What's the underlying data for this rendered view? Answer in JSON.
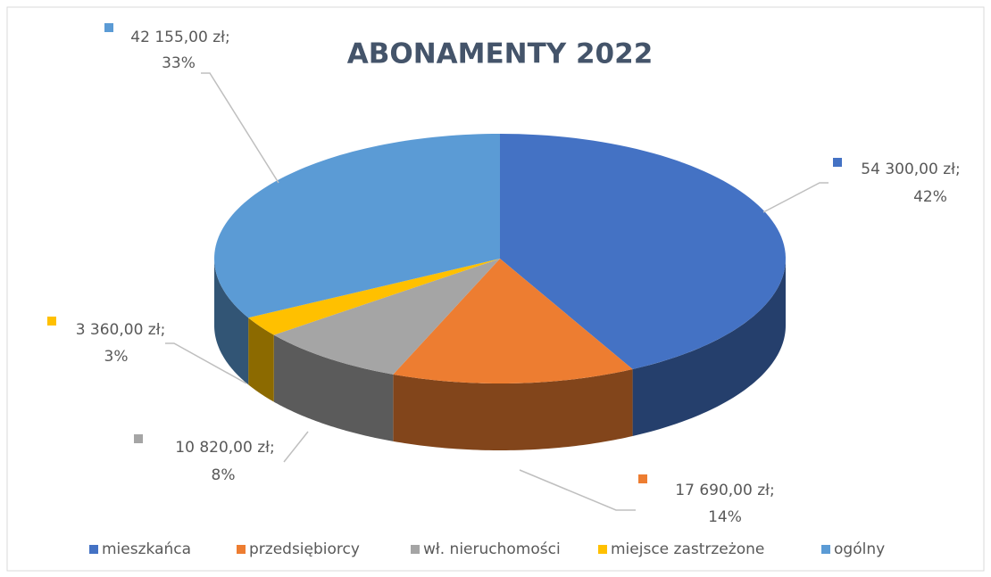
{
  "chart_data": {
    "type": "pie3d",
    "title": "ABONAMENTY 2022",
    "categories": [
      "mieszkańca",
      "przedsiębiorcy",
      "wł. nieruchomości",
      "miejsce zastrzeżone",
      "ogólny"
    ],
    "values": [
      54300,
      17690,
      10820,
      3360,
      42155
    ],
    "value_labels": [
      "54 300,00 zł;",
      "17 690,00 zł;",
      "10 820,00 zł;",
      "3 360,00 zł;",
      "42 155,00 zł;"
    ],
    "percents": [
      42,
      14,
      8,
      3,
      33
    ],
    "percent_labels": [
      "42%",
      "14%",
      "8%",
      "3%",
      "33%"
    ],
    "colors": [
      "#4472c4",
      "#ed7d31",
      "#a5a5a5",
      "#ffc000",
      "#5b9bd5"
    ],
    "legend": "bottom"
  }
}
